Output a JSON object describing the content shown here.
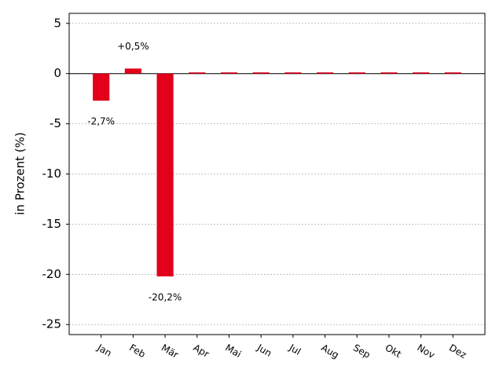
{
  "chart_data": {
    "type": "bar",
    "y_label": "in Prozent (%)",
    "categories": [
      "Jan",
      "Feb",
      "Mär",
      "Apr",
      "Mai",
      "Jun",
      "Jul",
      "Aug",
      "Sep",
      "Okt",
      "Nov",
      "Dez"
    ],
    "values": [
      -2.7,
      0.5,
      -20.2,
      0,
      0,
      0,
      0,
      0,
      0,
      0,
      0,
      0
    ],
    "value_labels": [
      "-2,7%",
      "+0,5%",
      "-20,2%",
      null,
      null,
      null,
      null,
      null,
      null,
      null,
      null,
      null
    ],
    "color": "#e2001a",
    "ylim": [
      -26,
      6
    ],
    "yticks": [
      5,
      0,
      -5,
      -10,
      -15,
      -20,
      -25
    ],
    "grid": true
  }
}
